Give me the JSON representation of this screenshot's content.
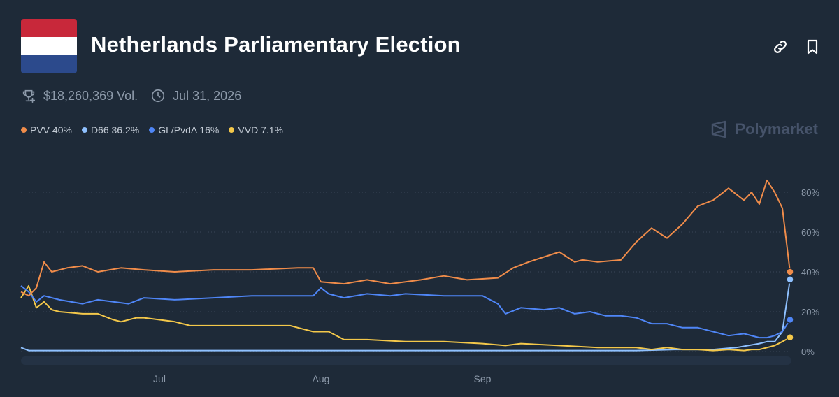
{
  "header": {
    "title": "Netherlands Parliamentary Election",
    "volume": "$18,260,369 Vol.",
    "end_date": "Jul 31, 2026",
    "brand": "Polymarket"
  },
  "legend": [
    {
      "label": "PVV 40%",
      "color": "#f08c4a"
    },
    {
      "label": "D66 36.2%",
      "color": "#8fc1ff"
    },
    {
      "label": "GL/PvdA 16%",
      "color": "#4f86f7"
    },
    {
      "label": "VVD 7.1%",
      "color": "#f4c84a"
    }
  ],
  "chart_data": {
    "type": "line",
    "title": "Netherlands Parliamentary Election",
    "xlabel": "",
    "ylabel": "",
    "ylim": [
      0,
      90
    ],
    "y_ticks": [
      0,
      20,
      40,
      60,
      80
    ],
    "y_tick_labels": [
      "0%",
      "20%",
      "40%",
      "60%",
      "80%"
    ],
    "x_range": [
      0,
      100
    ],
    "x_ticks": [
      {
        "x": 18,
        "label": "Jul"
      },
      {
        "x": 39,
        "label": "Aug"
      },
      {
        "x": 60,
        "label": "Sep"
      }
    ],
    "grid": true,
    "legend_position": "top-left",
    "series": [
      {
        "name": "PVV",
        "color": "#f08c4a",
        "x": [
          0,
          1,
          2,
          3,
          4,
          6,
          8,
          10,
          13,
          16,
          20,
          25,
          30,
          36,
          38,
          39,
          42,
          45,
          48,
          52,
          55,
          58,
          62,
          64,
          66,
          70,
          72,
          73,
          75,
          78,
          80,
          82,
          84,
          86,
          88,
          90,
          92,
          94,
          95,
          96,
          97,
          98,
          99,
          100
        ],
        "y": [
          30,
          28,
          32,
          45,
          40,
          42,
          43,
          40,
          42,
          41,
          40,
          41,
          41,
          42,
          42,
          35,
          34,
          36,
          34,
          36,
          38,
          36,
          37,
          42,
          45,
          50,
          45,
          46,
          45,
          46,
          55,
          62,
          57,
          64,
          73,
          76,
          82,
          76,
          80,
          74,
          86,
          80,
          72,
          40
        ]
      },
      {
        "name": "D66",
        "color": "#8fc1ff",
        "x": [
          0,
          1,
          2,
          5,
          10,
          20,
          30,
          40,
          50,
          60,
          70,
          80,
          85,
          90,
          93,
          96,
          97,
          98,
          99,
          100
        ],
        "y": [
          2,
          0.5,
          0.5,
          0.5,
          0.5,
          0.5,
          0.5,
          0.5,
          0.5,
          0.5,
          0.5,
          0.5,
          1,
          1,
          2,
          4,
          5,
          5,
          10,
          36.2
        ]
      },
      {
        "name": "GL/PvdA",
        "color": "#4f86f7",
        "x": [
          0,
          1,
          2,
          3,
          5,
          8,
          10,
          12,
          14,
          16,
          20,
          25,
          30,
          35,
          38,
          39,
          40,
          42,
          45,
          48,
          50,
          55,
          60,
          62,
          63,
          65,
          68,
          70,
          72,
          74,
          76,
          78,
          80,
          82,
          84,
          86,
          88,
          90,
          92,
          94,
          96,
          97,
          98,
          99,
          100
        ],
        "y": [
          33,
          30,
          25,
          28,
          26,
          24,
          26,
          25,
          24,
          27,
          26,
          27,
          28,
          28,
          28,
          32,
          29,
          27,
          29,
          28,
          29,
          28,
          28,
          24,
          19,
          22,
          21,
          22,
          19,
          20,
          18,
          18,
          17,
          14,
          14,
          12,
          12,
          10,
          8,
          9,
          7,
          7,
          8,
          10,
          16
        ]
      },
      {
        "name": "VVD",
        "color": "#f4c84a",
        "x": [
          0,
          1,
          2,
          3,
          4,
          5,
          8,
          10,
          12,
          13,
          15,
          16,
          20,
          22,
          25,
          30,
          35,
          36,
          38,
          40,
          42,
          45,
          50,
          55,
          60,
          63,
          65,
          70,
          75,
          80,
          82,
          84,
          86,
          88,
          90,
          92,
          94,
          95,
          96,
          97,
          98,
          99,
          100
        ],
        "y": [
          27,
          33,
          22,
          25,
          21,
          20,
          19,
          19,
          16,
          15,
          17,
          17,
          15,
          13,
          13,
          13,
          13,
          12,
          10,
          10,
          6,
          6,
          5,
          5,
          4,
          3,
          4,
          3,
          2,
          2,
          1,
          2,
          1,
          1,
          0.5,
          1,
          0.5,
          1,
          1,
          2,
          3,
          5,
          7.1
        ]
      }
    ]
  }
}
